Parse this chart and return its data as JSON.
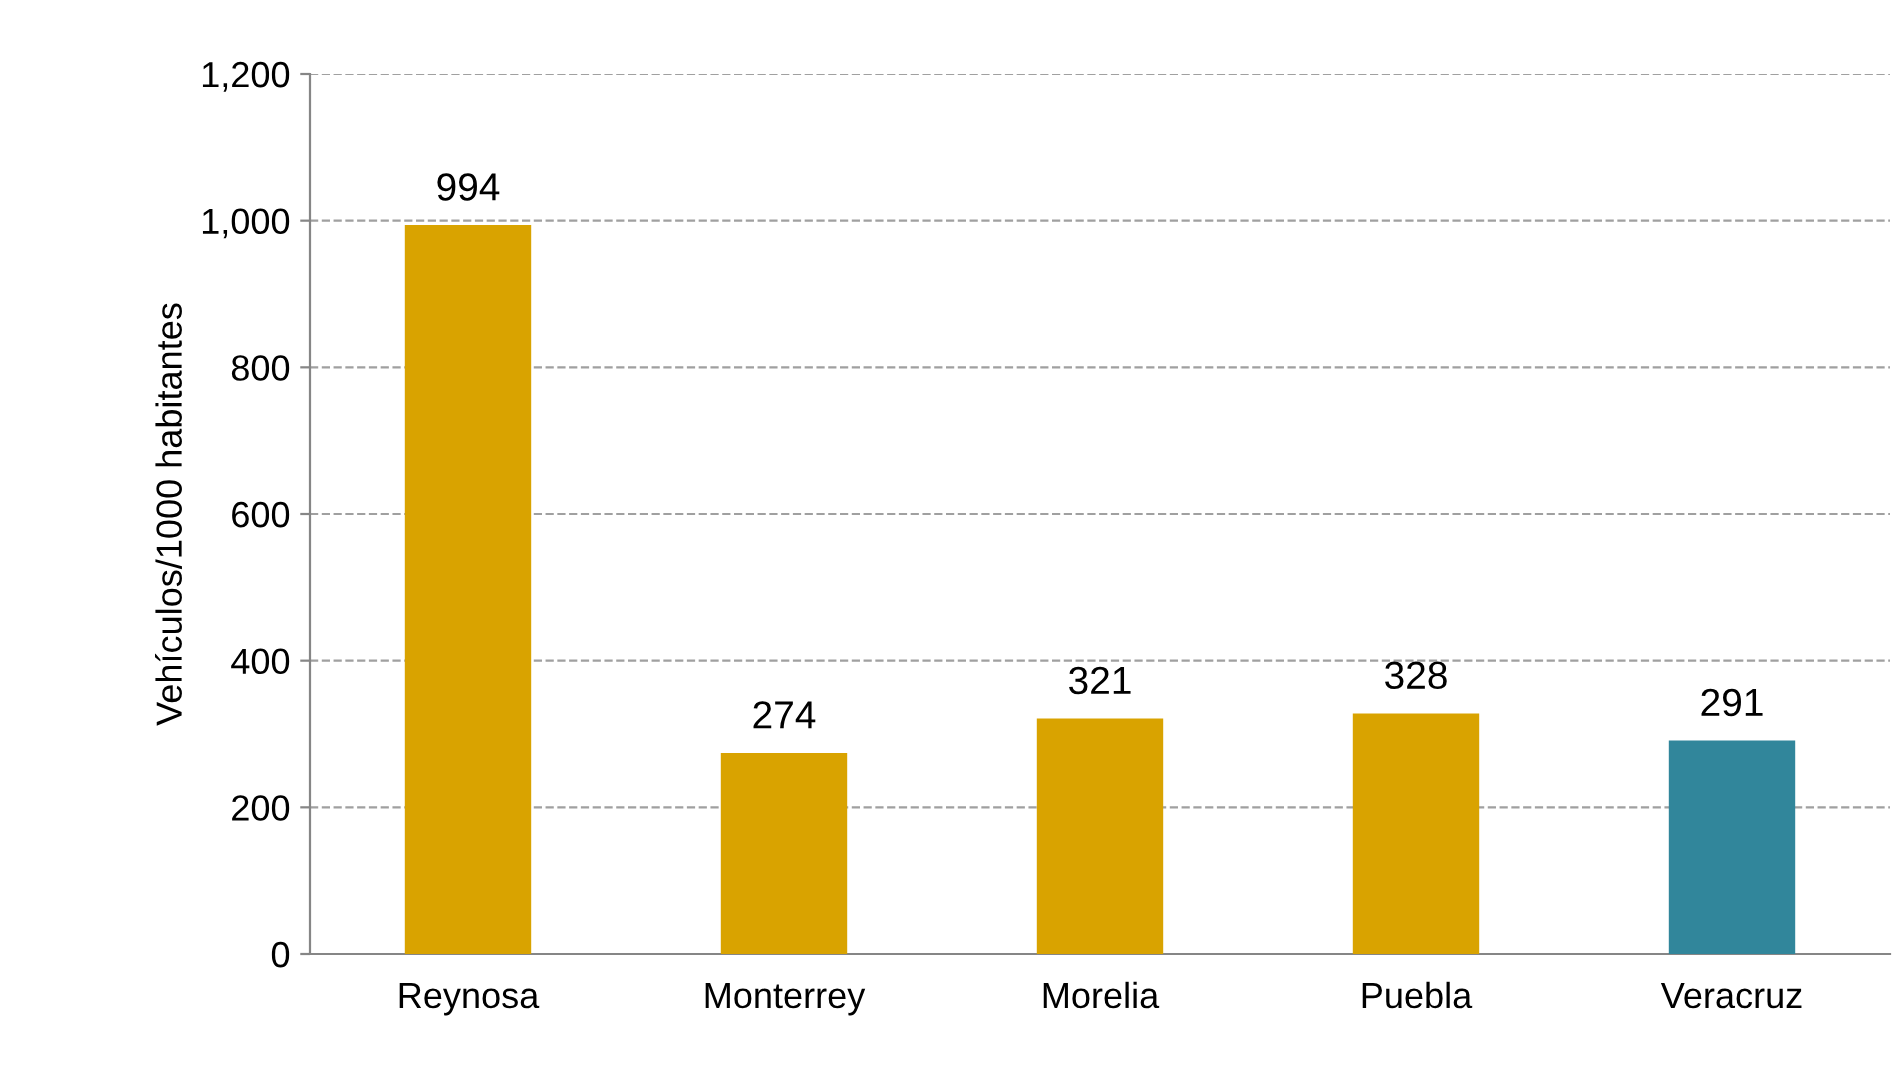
{
  "chart_data": {
    "type": "bar",
    "ylabel": "Vehículos/1000 habitantes",
    "categories": [
      "Reynosa",
      "Monterrey",
      "Morelia",
      "Puebla",
      "Veracruz"
    ],
    "values": [
      994,
      274,
      321,
      328,
      291
    ],
    "colors": [
      "#d9a300",
      "#d9a300",
      "#d9a300",
      "#d9a300",
      "#31869b"
    ],
    "data_labels": true,
    "ylim": [
      0,
      1200
    ],
    "yticks": [
      0,
      200,
      400,
      600,
      800,
      {
        "value": 1000,
        "label": "1,000"
      },
      {
        "value": 1200,
        "label": "1,200"
      }
    ],
    "grid": "y"
  }
}
